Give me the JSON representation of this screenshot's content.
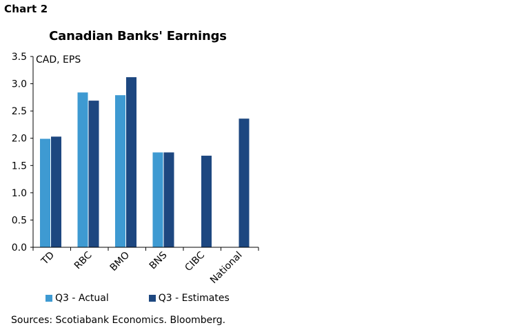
{
  "header": {
    "chart_number": "Chart 2"
  },
  "colors": {
    "actual": "#3e9ad2",
    "estimates": "#1d4780"
  },
  "chart_data": {
    "type": "bar",
    "title": "Canadian Banks' Earnings",
    "unit_label": "CAD, EPS",
    "categories": [
      "TD",
      "RBC",
      "BMO",
      "BNS",
      "CIBC",
      "National"
    ],
    "series": [
      {
        "name": "Q3 - Actual",
        "values": [
          1.99,
          2.84,
          2.79,
          1.74,
          null,
          null
        ]
      },
      {
        "name": "Q3 - Estimates",
        "values": [
          2.03,
          2.69,
          3.12,
          1.74,
          1.68,
          2.36
        ]
      }
    ],
    "ylim": [
      0,
      3.5
    ],
    "yticks": [
      "0.0",
      "0.5",
      "1.0",
      "1.5",
      "2.0",
      "2.5",
      "3.0",
      "3.5"
    ],
    "grid": false,
    "legend_position": "bottom"
  },
  "footer": {
    "source": "Sources: Scotiabank Economics. Bloomberg."
  }
}
